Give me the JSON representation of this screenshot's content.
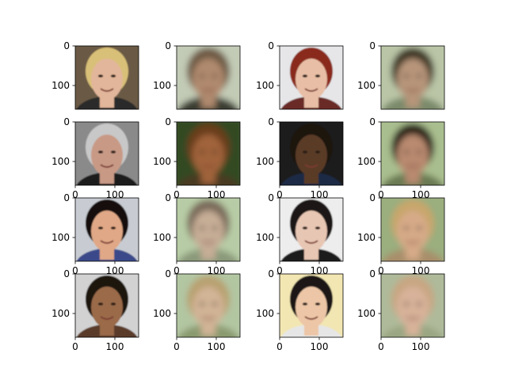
{
  "chart_data": {
    "type": "image-grid",
    "rows": 4,
    "cols": 4,
    "xlim": [
      0,
      160
    ],
    "ylim": [
      160,
      0
    ],
    "xticks": [
      0,
      100
    ],
    "yticks": [
      0,
      100
    ],
    "panels": [
      {
        "row": 0,
        "col": 0,
        "kind": "photo",
        "show_xticks": false,
        "skin": "#e2b69a",
        "hair": "#d9c078",
        "bg": "#6a5a44",
        "shirt": "#2a2a2a"
      },
      {
        "row": 0,
        "col": 1,
        "kind": "blurry",
        "show_xticks": false,
        "skin": "#b08a6e",
        "hair": "#6e5a44",
        "bg": "#c2cbb6",
        "shirt": "#3a3e30"
      },
      {
        "row": 0,
        "col": 2,
        "kind": "photo",
        "show_xticks": false,
        "skin": "#e8bfa6",
        "hair": "#8a2a1c",
        "bg": "#e6e6e8",
        "shirt": "#6a2a26"
      },
      {
        "row": 0,
        "col": 3,
        "kind": "blurry",
        "show_xticks": false,
        "skin": "#b7957a",
        "hair": "#3e3424",
        "bg": "#b9c5a6",
        "shirt": "#7a8a6a"
      },
      {
        "row": 1,
        "col": 0,
        "kind": "photo",
        "show_xticks": true,
        "skin": "#c89a86",
        "hair": "#c8c8c8",
        "bg": "#8a8a8a",
        "shirt": "#1e1e1e"
      },
      {
        "row": 1,
        "col": 1,
        "kind": "blurry",
        "show_xticks": true,
        "skin": "#a0643a",
        "hair": "#6a3c1c",
        "bg": "#304a24",
        "shirt": "#4a3a22"
      },
      {
        "row": 1,
        "col": 2,
        "kind": "photo",
        "show_xticks": true,
        "skin": "#5a3a28",
        "hair": "#1a120e",
        "bg": "#1a1a1e",
        "shirt": "#1e2a44"
      },
      {
        "row": 1,
        "col": 3,
        "kind": "blurry",
        "show_xticks": true,
        "skin": "#b98a70",
        "hair": "#2a2218",
        "bg": "#a9be8e",
        "shirt": "#6a7a52"
      },
      {
        "row": 2,
        "col": 0,
        "kind": "photo",
        "show_xticks": true,
        "skin": "#e0a886",
        "hair": "#141010",
        "bg": "#c8ccd2",
        "shirt": "#3a4a8a"
      },
      {
        "row": 2,
        "col": 1,
        "kind": "blurry",
        "show_xticks": true,
        "skin": "#c6ad96",
        "hair": "#7a6a5a",
        "bg": "#b7cca6",
        "shirt": "#8a9a7a"
      },
      {
        "row": 2,
        "col": 2,
        "kind": "photo",
        "show_xticks": true,
        "skin": "#e8c6b4",
        "hair": "#1a1212",
        "bg": "#ededed",
        "shirt": "#1a1a1a"
      },
      {
        "row": 2,
        "col": 3,
        "kind": "blurry",
        "show_xticks": true,
        "skin": "#d6aa88",
        "hair": "#c8a66a",
        "bg": "#9aae7e",
        "shirt": "#a88e6a"
      },
      {
        "row": 3,
        "col": 0,
        "kind": "photo",
        "show_xticks": true,
        "skin": "#9a6a4a",
        "hair": "#1a1210",
        "bg": "#d2d2d2",
        "shirt": "#5a3a2a"
      },
      {
        "row": 3,
        "col": 1,
        "kind": "blurry",
        "show_xticks": true,
        "skin": "#d2b496",
        "hair": "#b8a070",
        "bg": "#b2c6a2",
        "shirt": "#8a9a6e"
      },
      {
        "row": 3,
        "col": 2,
        "kind": "photo",
        "show_xticks": true,
        "skin": "#ecc6a6",
        "hair": "#1a1616",
        "bg": "#f2e6b2",
        "shirt": "#e6e6e6"
      },
      {
        "row": 3,
        "col": 3,
        "kind": "blurry",
        "show_xticks": true,
        "skin": "#d8b29a",
        "hair": "#c8a682",
        "bg": "#aeba9a",
        "shirt": "#9aa682"
      }
    ]
  }
}
